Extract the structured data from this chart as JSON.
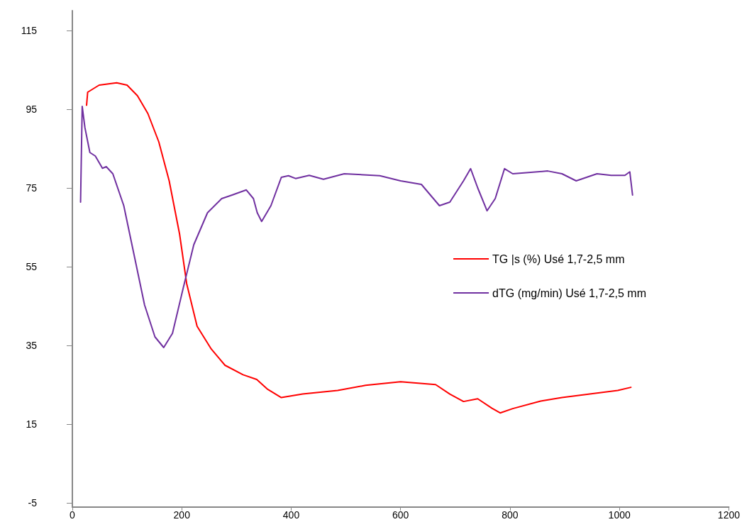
{
  "chart_data": {
    "type": "line",
    "xlim": [
      0,
      1200
    ],
    "xticks": [
      0,
      200,
      400,
      600,
      800,
      1000,
      1200
    ],
    "ylim": [
      -6,
      120
    ],
    "yticks": [
      -5,
      15,
      35,
      55,
      75,
      95,
      115
    ],
    "grid": false,
    "legend": "right",
    "marker": "none",
    "line_style": "solid",
    "series": [
      {
        "name": "TG |s (%) Usé 1,7-2,5 mm",
        "color": "#ff0000",
        "x": [
          26,
          28,
          49,
          81,
          100,
          119,
          138,
          158,
          177,
          196,
          209,
          228,
          254,
          279,
          312,
          337,
          356,
          382,
          421,
          485,
          536,
          600,
          664,
          690,
          715,
          741,
          767,
          782,
          805,
          856,
          895,
          946,
          997,
          1021
        ],
        "values": [
          96,
          99.3,
          101.1,
          101.7,
          101.1,
          98.4,
          93.9,
          86.7,
          76.8,
          63.3,
          50.7,
          39.9,
          34.1,
          30,
          27.6,
          26.4,
          24,
          21.8,
          22.7,
          23.6,
          24.9,
          25.8,
          25.1,
          22.7,
          20.8,
          21.5,
          19.1,
          17.9,
          19,
          20.9,
          21.8,
          22.7,
          23.6,
          24.4
        ]
      },
      {
        "name": "dTG (mg/min) Usé 1,7-2,5 mm",
        "color": "#7030a0",
        "x": [
          15,
          18,
          23,
          32,
          42,
          55,
          62,
          74,
          94,
          113,
          132,
          151,
          167,
          183,
          203,
          222,
          247,
          273,
          292,
          318,
          331,
          338,
          346,
          363,
          382,
          395,
          408,
          433,
          459,
          497,
          562,
          600,
          638,
          671,
          690,
          715,
          728,
          741,
          758,
          773,
          790,
          805,
          869,
          895,
          921,
          959,
          985,
          1010,
          1019,
          1024
        ],
        "values": [
          71.4,
          95.7,
          90.3,
          84,
          83.1,
          80,
          80.4,
          78.6,
          70.5,
          57.9,
          45.3,
          37.2,
          34.5,
          38.1,
          49.8,
          60.6,
          68.7,
          72.3,
          73.2,
          74.5,
          72.3,
          68.7,
          66.5,
          70.5,
          77.7,
          78.1,
          77.4,
          78.2,
          77.2,
          78.6,
          78.1,
          76.8,
          75.9,
          70.5,
          71.4,
          76.8,
          79.9,
          75,
          69.2,
          72.3,
          79.9,
          78.6,
          79.3,
          78.6,
          76.8,
          78.6,
          78.2,
          78.2,
          79.1,
          73.2
        ]
      }
    ]
  }
}
